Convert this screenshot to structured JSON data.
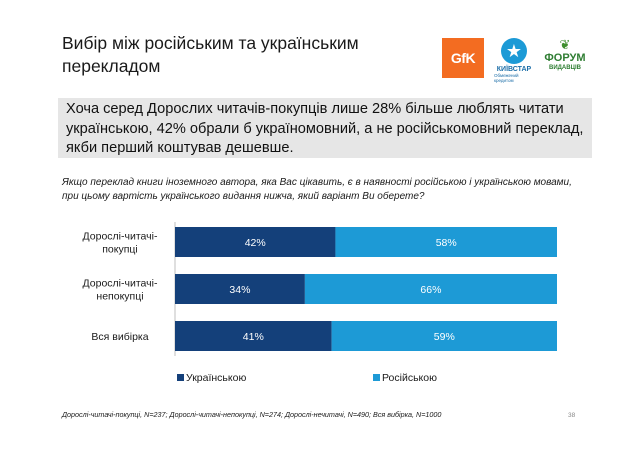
{
  "title": "Вибір між російським та українським перекладом",
  "logos": {
    "gfk": "GfK",
    "kyivstar": "КИЇВСТАР",
    "kyivstar_tagline": "Обмежений кредитом",
    "forum_line1": "ФОРУМ",
    "forum_line2": "ВИДАВЦІВ"
  },
  "highlight_text": "Хоча серед Дорослих читачів-покупців лише 28% більше люблять читати українською, 42% обрали б україномовний, а не російськомовний переклад, якби перший коштував дешевше.",
  "question": "Якщо переклад книги іноземного автора, яка Вас цікавить, є в наявності російською і українською мовами, при цьому вартість українського видання нижча, який варіант Ви оберете?",
  "footnote": "Дорослі-читачі-покупці, N=237; Дорослі-читачі-непокупці, N=274; Дорослі-нечитачі, N=490; Вся вибірка, N=1000",
  "page_number": "38",
  "chart_data": {
    "type": "bar",
    "orientation": "horizontal",
    "stacked": true,
    "categories": [
      "Дорослі-читачі-покупці",
      "Дорослі-читачі-непокупці",
      "Вся вибірка"
    ],
    "category_lines": [
      [
        "Дорослі-читачі-",
        "покупці"
      ],
      [
        "Дорослі-читачі-",
        "непокупці"
      ],
      [
        "Вся вибірка"
      ]
    ],
    "series": [
      {
        "name": "Українською",
        "values": [
          42,
          34,
          41
        ],
        "labels": [
          "42%",
          "34%",
          "41%"
        ],
        "color": "#14407a"
      },
      {
        "name": "Російською",
        "values": [
          58,
          66,
          59
        ],
        "labels": [
          "58%",
          "66%",
          "59%"
        ],
        "color": "#1d9ad6"
      }
    ],
    "xlim": [
      0,
      100
    ],
    "legend_position": "bottom",
    "grid": false
  }
}
